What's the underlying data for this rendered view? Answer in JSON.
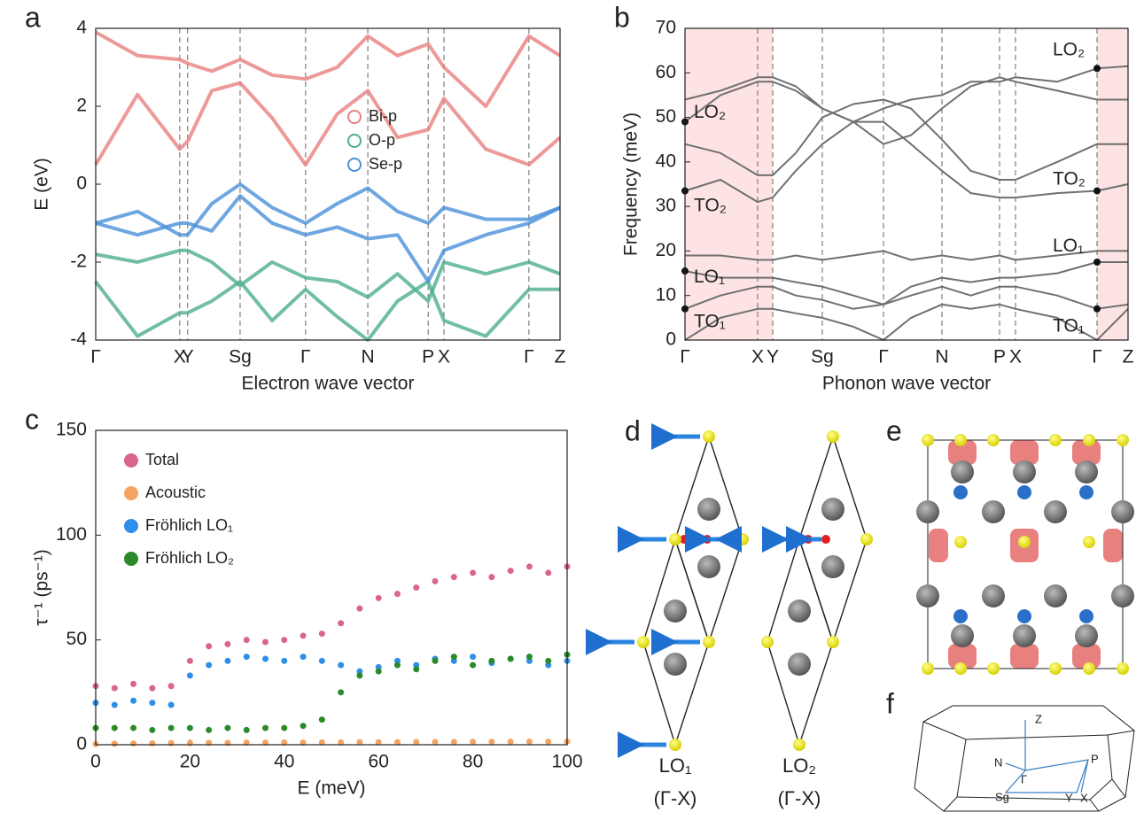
{
  "chart_data": [
    {
      "type": "line",
      "label": "a",
      "xlabel": "Electron wave vector",
      "ylabel": "E (eV)",
      "x": [
        0,
        0.09,
        0.181,
        0.198,
        0.25,
        0.311,
        0.38,
        0.452,
        0.52,
        0.586,
        0.65,
        0.716,
        0.75,
        0.84,
        0.933,
        1
      ],
      "xlim": [
        0,
        1
      ],
      "ylim": [
        -4,
        4
      ],
      "yticks": [
        -4,
        -2,
        0,
        2,
        4
      ],
      "xticks": [
        {
          "value": 0,
          "label": "Γ"
        },
        {
          "value": 0.181,
          "label": "X"
        },
        {
          "value": 0.198,
          "label": "Y"
        },
        {
          "value": 0.311,
          "label": "Sg"
        },
        {
          "value": 0.452,
          "label": "Γ"
        },
        {
          "value": 0.586,
          "label": "N"
        },
        {
          "value": 0.716,
          "label": "P"
        },
        {
          "value": 0.75,
          "label": "X"
        },
        {
          "value": 0.933,
          "label": "Γ"
        },
        {
          "value": 1,
          "label": "Z"
        }
      ],
      "vlines": true,
      "legend": "center right",
      "marker": "open",
      "series": [
        {
          "name": "Bi-p",
          "color": "#e98080",
          "bands": [
            [
              0.5,
              2.3,
              0.9,
              1.1,
              2.4,
              2.6,
              1.7,
              0.5,
              1.8,
              2.4,
              1.2,
              1.4,
              2.2,
              0.9,
              0.5,
              1.2
            ],
            [
              3.9,
              3.3,
              3.2,
              3.1,
              2.9,
              3.2,
              2.8,
              2.7,
              3.0,
              3.8,
              3.3,
              3.6,
              3.0,
              2.0,
              3.8,
              3.3
            ]
          ]
        },
        {
          "name": "O-p",
          "color": "#4fae8e",
          "bands": [
            [
              -1.8,
              -2.0,
              -1.7,
              -1.7,
              -2.0,
              -2.6,
              -2.0,
              -2.4,
              -2.5,
              -2.9,
              -2.3,
              -3.0,
              -2.0,
              -2.3,
              -2.0,
              -2.3
            ],
            [
              -2.5,
              -3.9,
              -3.3,
              -3.3,
              -3.0,
              -2.5,
              -3.5,
              -2.7,
              -3.4,
              -4.0,
              -3.0,
              -2.5,
              -3.5,
              -3.9,
              -2.7,
              -2.7
            ]
          ]
        },
        {
          "name": "Se-p",
          "color": "#4a90d9",
          "bands": [
            [
              -1.0,
              -0.7,
              -1.3,
              -1.3,
              -0.5,
              0.0,
              -0.6,
              -1.0,
              -0.5,
              -0.1,
              -0.7,
              -1.0,
              -0.6,
              -0.9,
              -0.9,
              -0.6
            ],
            [
              -1.0,
              -1.3,
              -1.0,
              -1.0,
              -1.2,
              -0.3,
              -1.0,
              -1.3,
              -1.1,
              -1.4,
              -1.3,
              -2.5,
              -1.7,
              -1.3,
              -1.0,
              -0.6
            ]
          ]
        }
      ]
    },
    {
      "type": "line",
      "label": "b",
      "xlabel": "Phonon wave vector",
      "ylabel": "Frequency (meV)",
      "x": [
        0,
        0.08,
        0.164,
        0.198,
        0.25,
        0.31,
        0.38,
        0.448,
        0.51,
        0.58,
        0.645,
        0.71,
        0.746,
        0.84,
        0.93,
        1
      ],
      "xlim": [
        0,
        1
      ],
      "ylim": [
        0,
        70
      ],
      "yticks": [
        0,
        10,
        20,
        30,
        40,
        50,
        60,
        70
      ],
      "xticks": [
        {
          "value": 0,
          "label": "Γ"
        },
        {
          "value": 0.164,
          "label": "X"
        },
        {
          "value": 0.198,
          "label": "Y"
        },
        {
          "value": 0.31,
          "label": "Sg"
        },
        {
          "value": 0.448,
          "label": "Γ"
        },
        {
          "value": 0.58,
          "label": "N"
        },
        {
          "value": 0.71,
          "label": "P"
        },
        {
          "value": 0.746,
          "label": "X"
        },
        {
          "value": 0.93,
          "label": "Γ"
        },
        {
          "value": 1,
          "label": "Z"
        }
      ],
      "vlines": true,
      "shade_color": "#fde3e3",
      "series": [
        {
          "color": "#707070",
          "bands": [
            [
              0,
              5,
              7,
              7,
              6,
              5,
              3,
              0,
              5,
              8,
              7,
              8,
              7,
              5,
              0,
              7
            ],
            [
              7,
              10,
              12,
              12,
              10,
              9,
              7,
              8,
              10,
              12,
              10,
              12,
              12,
              10,
              7,
              8
            ],
            [
              15.5,
              14,
              14,
              14,
              13,
              12,
              10,
              8,
              12,
              14,
              13,
              14,
              14,
              15,
              17.5,
              17.5
            ],
            [
              19,
              19,
              18,
              18,
              19,
              18,
              19,
              20,
              18,
              19,
              18,
              19,
              18,
              19,
              20,
              20
            ],
            [
              33.5,
              36,
              31,
              32,
              38,
              44,
              49,
              49,
              44,
              38,
              33,
              32,
              32,
              33,
              33.5,
              35
            ],
            [
              44,
              42,
              37,
              37,
              42,
              50,
              53,
              54,
              52,
              45,
              38,
              36,
              36,
              40,
              44,
              44
            ],
            [
              49,
              55,
              58,
              58,
              56,
              52,
              49,
              44,
              46,
              52,
              57,
              59,
              58,
              56,
              54,
              54
            ],
            [
              54,
              56,
              59,
              59,
              57,
              52,
              49,
              52,
              54,
              55,
              58,
              58,
              59,
              58,
              61,
              61.5
            ]
          ]
        }
      ],
      "points": {
        "color": "#111111",
        "x": [
          0,
          0,
          0,
          0,
          0.93,
          0.93,
          0.93,
          0.93
        ],
        "values": [
          49,
          33.5,
          15.5,
          7,
          61,
          33.5,
          17.5,
          7
        ]
      },
      "annotations": [
        {
          "text": "LO₂",
          "x": 0.02,
          "y": 51,
          "color": "#2e8b2e"
        },
        {
          "text": "TO₂",
          "x": 0.02,
          "y": 30,
          "color": "#2e8b2e"
        },
        {
          "text": "LO₁",
          "x": 0.02,
          "y": 14,
          "color": "#3a8ee6"
        },
        {
          "text": "TO₁",
          "x": 0.02,
          "y": 4,
          "color": "#3a8ee6"
        },
        {
          "text": "LO₂",
          "x": 0.83,
          "y": 65,
          "color": "#2e8b2e"
        },
        {
          "text": "TO₂",
          "x": 0.83,
          "y": 36,
          "color": "#2e8b2e"
        },
        {
          "text": "LO₁",
          "x": 0.83,
          "y": 21,
          "color": "#3a8ee6"
        },
        {
          "text": "TO₁",
          "x": 0.83,
          "y": 3,
          "color": "#3a8ee6"
        }
      ]
    },
    {
      "type": "scatter",
      "label": "c",
      "xlabel": "E (meV)",
      "ylabel": "τ⁻¹ (ps⁻¹)",
      "x": [
        0,
        4,
        8,
        12,
        16,
        20,
        24,
        28,
        32,
        36,
        40,
        44,
        48,
        52,
        56,
        60,
        64,
        68,
        72,
        76,
        80,
        84,
        88,
        92,
        96,
        100
      ],
      "xlim": [
        0,
        100
      ],
      "ylim": [
        0,
        150
      ],
      "xticks": [
        0,
        20,
        40,
        60,
        80,
        100
      ],
      "yticks": [
        0,
        50,
        100,
        150
      ],
      "legend": "upper left",
      "marker": "filled",
      "series": [
        {
          "name": "Total",
          "color": "#d9648e",
          "values": [
            28,
            27,
            29,
            27,
            28,
            40,
            47,
            48,
            50,
            49,
            50,
            52,
            53,
            58,
            65,
            70,
            72,
            75,
            78,
            80,
            82,
            80,
            83,
            85,
            82,
            85
          ]
        },
        {
          "name": "Acoustic",
          "color": "#f4a460",
          "values": [
            0.3,
            0.5,
            0.6,
            0.7,
            0.8,
            0.8,
            0.9,
            0.9,
            1,
            1,
            1,
            1,
            1.1,
            1.1,
            1.2,
            1.2,
            1.2,
            1.3,
            1.3,
            1.3,
            1.4,
            1.4,
            1.4,
            1.5,
            1.5,
            1.5
          ]
        },
        {
          "name": "Fröhlich LO₁",
          "color": "#2f8fe8",
          "values": [
            20,
            19,
            21,
            20,
            19,
            33,
            38,
            40,
            42,
            41,
            40,
            42,
            40,
            38,
            35,
            37,
            40,
            38,
            41,
            40,
            42,
            39,
            41,
            40,
            38,
            40
          ]
        },
        {
          "name": "Fröhlich LO₂",
          "color": "#2a8a2a",
          "values": [
            8,
            8,
            8,
            7,
            8,
            8,
            7,
            8,
            7,
            8,
            8,
            9,
            12,
            25,
            33,
            35,
            38,
            36,
            40,
            42,
            38,
            40,
            41,
            42,
            40,
            43
          ]
        }
      ]
    }
  ],
  "diagrams": {
    "d": {
      "label": "d",
      "texts": [
        "LO₁",
        "(Γ-X)",
        "LO₂",
        "(Γ-X)"
      ]
    },
    "e": {
      "label": "e"
    },
    "f": {
      "label": "f",
      "points": [
        "Z",
        "N",
        "P",
        "Γ",
        "Sg",
        "Y",
        "X"
      ]
    }
  }
}
